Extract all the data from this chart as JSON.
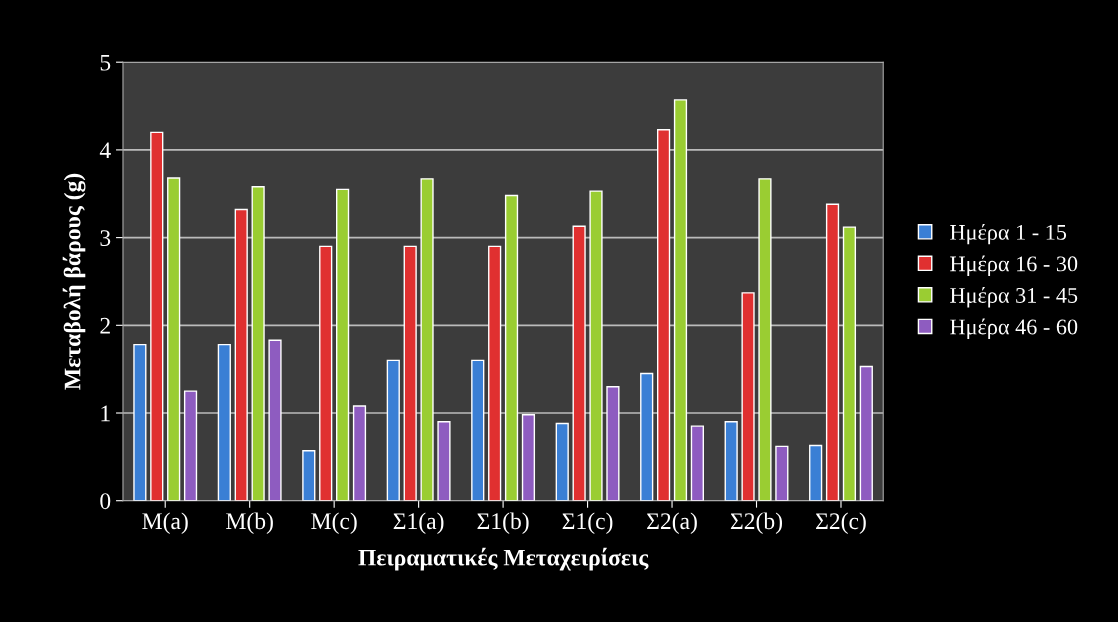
{
  "chart_data": {
    "type": "bar",
    "xlabel": "Πειραματικές Μεταχειρίσεις",
    "ylabel": "Μεταβολή βάρους (g)",
    "categories": [
      "M(a)",
      "M(b)",
      "M(c)",
      "Σ1(a)",
      "Σ1(b)",
      "Σ1(c)",
      "Σ2(a)",
      "Σ2(b)",
      "Σ2(c)"
    ],
    "series": [
      {
        "name": "Ημέρα 1 - 15",
        "color": "#3a7fd5",
        "values": [
          1.78,
          1.78,
          0.57,
          1.6,
          1.6,
          0.88,
          1.45,
          0.9,
          0.63
        ]
      },
      {
        "name": "Ημέρα 16 - 30",
        "color": "#e03030",
        "values": [
          4.2,
          3.32,
          2.9,
          2.9,
          2.9,
          3.13,
          4.23,
          2.37,
          3.38
        ]
      },
      {
        "name": "Ημέρα 31 - 45",
        "color": "#9acd32",
        "values": [
          3.68,
          3.58,
          3.55,
          3.67,
          3.48,
          3.53,
          4.57,
          3.67,
          3.12
        ]
      },
      {
        "name": "Ημέρα 46 - 60",
        "color": "#8e5cc0",
        "values": [
          1.25,
          1.83,
          1.08,
          0.9,
          0.98,
          1.3,
          0.85,
          0.62,
          1.53
        ]
      }
    ],
    "ylim": [
      0,
      5
    ],
    "yticks": [
      0,
      1,
      2,
      3,
      4,
      5
    ],
    "grid": "y",
    "legend": "right"
  }
}
